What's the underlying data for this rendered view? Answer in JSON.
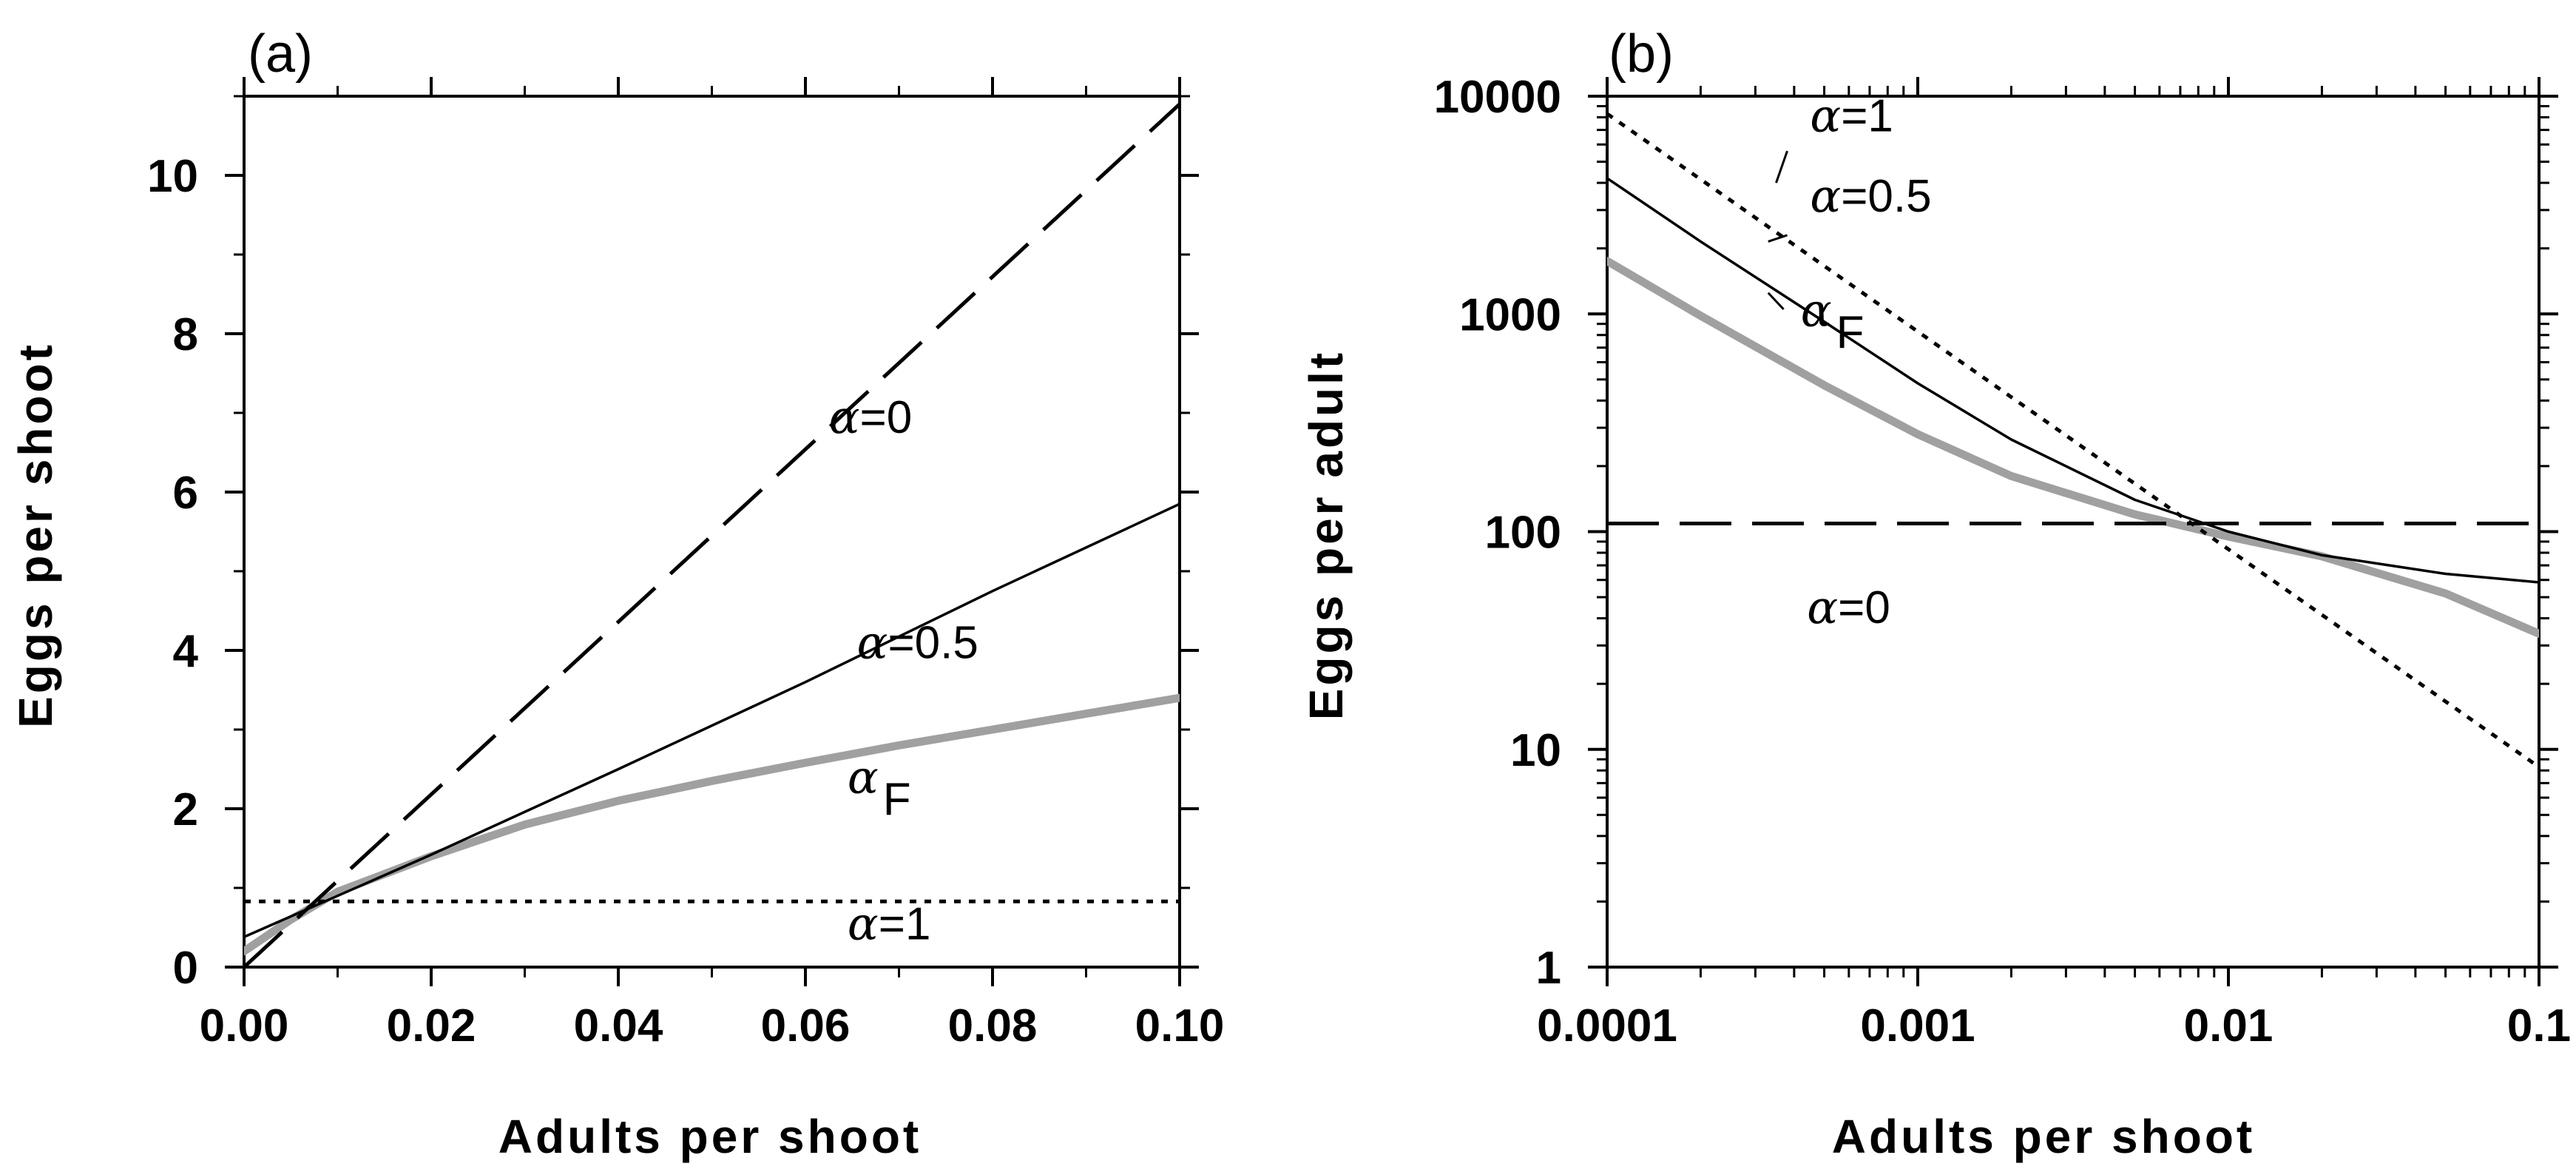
{
  "chart_data": [
    {
      "type": "line",
      "panel_label": "(a)",
      "xlabel": "Adults per shoot",
      "ylabel": "Eggs per shoot",
      "xlim": [
        0,
        0.1
      ],
      "ylim": [
        0,
        11
      ],
      "x_ticks": [
        "0.00",
        "0.02",
        "0.04",
        "0.06",
        "0.08",
        "0.10"
      ],
      "y_ticks": [
        "0",
        "2",
        "4",
        "6",
        "8",
        "10"
      ],
      "x_tick_values": [
        0,
        0.02,
        0.04,
        0.06,
        0.08,
        0.1
      ],
      "y_tick_values": [
        0,
        2,
        4,
        6,
        8,
        10
      ],
      "x_minor_step": 0.01,
      "y_minor_step": 1,
      "x_scale": "linear",
      "y_scale": "linear",
      "grid": false,
      "series": [
        {
          "key": "a0",
          "name": "α=0",
          "style": "dashed",
          "color": "#000000",
          "x": [
            0,
            0.1
          ],
          "y": [
            0,
            10.9
          ]
        },
        {
          "key": "a05",
          "name": "α=0.5",
          "style": "solid",
          "color": "#000000",
          "x": [
            0,
            0.01,
            0.02,
            0.04,
            0.06,
            0.08,
            0.1
          ],
          "y": [
            0.38,
            0.9,
            1.42,
            2.5,
            3.6,
            4.75,
            5.85
          ]
        },
        {
          "key": "aF",
          "name": "αF",
          "style": "thick-gray",
          "color": "#a0a0a0",
          "x": [
            0,
            0.005,
            0.01,
            0.02,
            0.03,
            0.04,
            0.05,
            0.06,
            0.07,
            0.08,
            0.09,
            0.1
          ],
          "y": [
            0.2,
            0.6,
            0.95,
            1.4,
            1.8,
            2.1,
            2.35,
            2.58,
            2.8,
            3.0,
            3.2,
            3.4
          ]
        },
        {
          "key": "a1",
          "name": "α=1",
          "style": "dotted",
          "color": "#000000",
          "x": [
            0,
            0.1
          ],
          "y": [
            0.83,
            0.83
          ]
        }
      ],
      "annotations": [
        {
          "series": "a0",
          "label": "α=0",
          "x": 0.0625,
          "y": 6.75
        },
        {
          "series": "a05",
          "label": "α=0.5",
          "x": 0.0655,
          "y": 3.9
        },
        {
          "series": "aF",
          "label": "αF",
          "x": 0.0645,
          "y": 2.2
        },
        {
          "series": "a1",
          "label": "α=1",
          "x": 0.0645,
          "y": 0.35
        }
      ]
    },
    {
      "type": "line",
      "panel_label": "(b)",
      "xlabel": "Adults per shoot",
      "ylabel": "Eggs per adult",
      "xlim": [
        0.0001,
        0.1
      ],
      "ylim": [
        1,
        10000
      ],
      "x_ticks": [
        "0.0001",
        "0.001",
        "0.01",
        "0.1"
      ],
      "y_ticks": [
        "1",
        "10",
        "100",
        "1000",
        "10000"
      ],
      "x_tick_values": [
        0.0001,
        0.001,
        0.01,
        0.1
      ],
      "y_tick_values": [
        1,
        10,
        100,
        1000,
        10000
      ],
      "x_scale": "log",
      "y_scale": "log",
      "grid": false,
      "series": [
        {
          "key": "a1",
          "name": "α=1",
          "style": "dotted",
          "color": "#000000",
          "x": [
            0.0001,
            0.1
          ],
          "y": [
            8300,
            8.3
          ]
        },
        {
          "key": "a05",
          "name": "α=0.5",
          "style": "solid",
          "color": "#000000",
          "x": [
            0.0001,
            0.0002,
            0.0005,
            0.001,
            0.002,
            0.005,
            0.01,
            0.02,
            0.05,
            0.1
          ],
          "y": [
            4200,
            2150,
            920,
            480,
            265,
            140,
            100,
            78,
            64,
            58.5
          ]
        },
        {
          "key": "aF",
          "name": "αF",
          "style": "thick-gray",
          "color": "#a0a0a0",
          "x": [
            0.0001,
            0.0002,
            0.0005,
            0.001,
            0.002,
            0.005,
            0.01,
            0.02,
            0.05,
            0.1
          ],
          "y": [
            1750,
            980,
            470,
            280,
            180,
            120,
            95,
            77,
            52,
            34
          ]
        },
        {
          "key": "a0",
          "name": "α=0",
          "style": "dashed",
          "color": "#000000",
          "x": [
            0.0001,
            0.1
          ],
          "y": [
            109,
            109
          ]
        }
      ],
      "annotations": [
        {
          "series": "a1",
          "label": "α=1",
          "x": 0.00045,
          "y": 6900
        },
        {
          "series": "a05",
          "label": "α=0.5",
          "x": 0.00045,
          "y": 2950
        },
        {
          "series": "aF",
          "label": "αF",
          "x": 0.00042,
          "y": 880
        },
        {
          "series": "a0",
          "label": "α=0",
          "x": 0.00044,
          "y": 38
        }
      ]
    }
  ]
}
